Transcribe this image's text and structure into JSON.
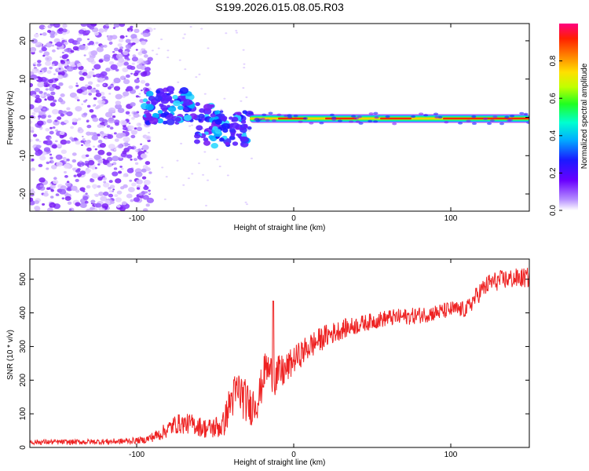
{
  "title": "S199.2026.015.08.05.R03",
  "colors": {
    "snr_line": "#ee2222",
    "frame": "#000000"
  },
  "chart_data": [
    {
      "type": "heatmap",
      "xlabel": "Height of straight line (km)",
      "ylabel": "Frequency (Hz)",
      "xlim": [
        -168,
        150
      ],
      "ylim": [
        -24.5,
        24.5
      ],
      "xticks": [
        -100,
        0,
        100
      ],
      "xtick_labels": [
        "-100",
        "0",
        "100"
      ],
      "yticks": [
        -20,
        -10,
        0,
        10,
        20
      ],
      "ytick_labels": [
        "-20",
        "-10",
        "0",
        "10",
        "20"
      ],
      "colorbar": {
        "label": "Normalized spectral amplitude",
        "range": [
          0,
          1
        ],
        "ticks": [
          0,
          0.2,
          0.4,
          0.6,
          0.8
        ],
        "tick_labels": [
          "0.0",
          "0.2",
          "0.4",
          "0.6",
          "0.8"
        ],
        "colormap": "rainbow"
      },
      "features": {
        "noise_region_x": [
          -168,
          -95
        ],
        "scatter_region_x": [
          -95,
          -28
        ],
        "tone_start_x": -28,
        "tone_freq_hz": -0.3
      }
    },
    {
      "type": "line",
      "xlabel": "Height of straight line (km)",
      "ylabel": "SNR (10 * v/v)",
      "xlim": [
        -168,
        150
      ],
      "ylim": [
        0,
        560
      ],
      "xticks": [
        -100,
        0,
        100
      ],
      "xtick_labels": [
        "-100",
        "0",
        "100"
      ],
      "yticks": [
        0,
        100,
        200,
        300,
        400,
        500
      ],
      "ytick_labels": [
        "0",
        "100",
        "200",
        "300",
        "400",
        "500"
      ],
      "series": [
        {
          "name": "SNR",
          "x": [
            -168,
            -140,
            -110,
            -95,
            -85,
            -75,
            -65,
            -55,
            -45,
            -40,
            -35,
            -28,
            -22,
            -18,
            -12,
            -5,
            0,
            10,
            20,
            30,
            45,
            60,
            75,
            90,
            100,
            110,
            118,
            125,
            135,
            150
          ],
          "y": [
            16,
            16,
            18,
            22,
            40,
            70,
            70,
            55,
            65,
            140,
            170,
            120,
            150,
            240,
            210,
            230,
            260,
            300,
            330,
            350,
            370,
            385,
            390,
            400,
            410,
            410,
            460,
            490,
            500,
            505
          ],
          "noise": [
            8,
            8,
            9,
            10,
            20,
            30,
            30,
            30,
            40,
            60,
            70,
            60,
            60,
            50,
            60,
            50,
            40,
            40,
            35,
            30,
            25,
            25,
            25,
            25,
            25,
            25,
            30,
            30,
            30,
            30
          ],
          "spike": {
            "x": -13,
            "y": 435
          }
        }
      ]
    }
  ]
}
